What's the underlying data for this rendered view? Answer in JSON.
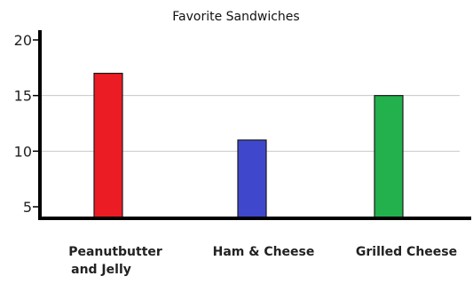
{
  "chart_data": {
    "type": "bar",
    "title": "Favorite Sandwiches",
    "xlabel": "",
    "ylabel": "",
    "categories": [
      [
        "Peanutbutter",
        "and  Jelly"
      ],
      [
        "Ham & Cheese"
      ],
      [
        "Grilled Cheese"
      ]
    ],
    "values": [
      17,
      11,
      15
    ],
    "colors": [
      "#ec1c24",
      "#3f48cc",
      "#22b14c"
    ],
    "bar_outline": "#1a1a1a",
    "ylim": [
      4,
      21
    ],
    "yticks": [
      5,
      10,
      15,
      20
    ],
    "gridlines": [
      10,
      15
    ],
    "grid_color": "#c8c8c8",
    "axis_color": "#000000",
    "legend": false
  }
}
